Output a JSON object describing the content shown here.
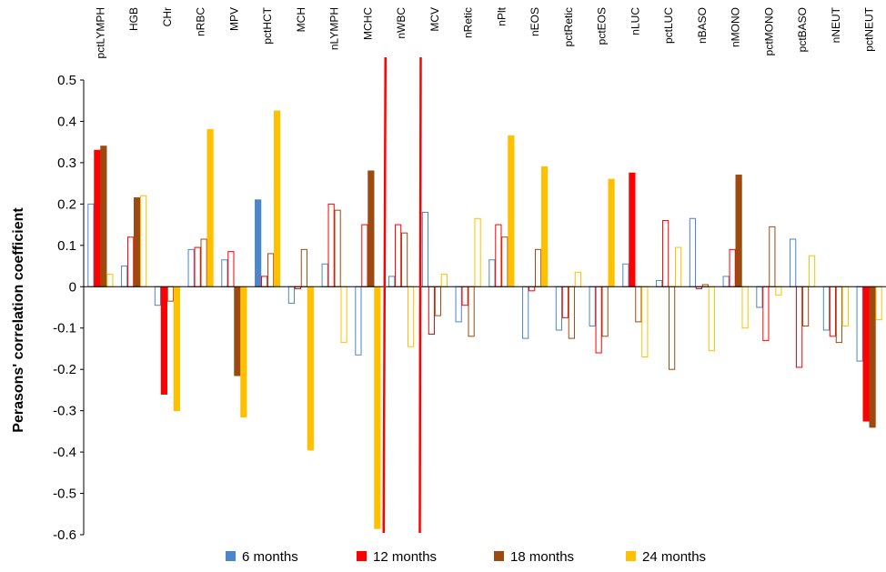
{
  "chart_data": {
    "type": "bar",
    "ylabel": "Perasons' correlation coefficient",
    "ylim": [
      -0.6,
      0.5
    ],
    "yticks": [
      0.5,
      0.4,
      0.3,
      0.2,
      0.1,
      0,
      -0.1,
      -0.2,
      -0.3,
      -0.4,
      -0.5,
      -0.6
    ],
    "ytick_labels": [
      "0.5",
      "0.4",
      "0.3",
      "0.2",
      "0.1",
      "0",
      "-0.1",
      "-0.2",
      "-0.3",
      "-0.4",
      "-0.5",
      "-0.6"
    ],
    "grid": false,
    "legend_position": "bottom",
    "categories": [
      "pctLYMPH",
      "HGB",
      "CHr",
      "nRBC",
      "MPV",
      "pctHCT",
      "MCH",
      "nLYMPH",
      "MCHC",
      "nWBC",
      "MCV",
      "nRetic",
      "nPlt",
      "nEOS",
      "pctRetic",
      "pctEOS",
      "nLUC",
      "pctLUC",
      "nBASO",
      "nMONO",
      "pctMONO",
      "pctBASO",
      "nNEUT",
      "pctNEUT"
    ],
    "series": [
      {
        "name": "6 months",
        "color": "#4a86c8",
        "values": [
          0.2,
          0.05,
          -0.045,
          0.09,
          0.065,
          0.21,
          -0.04,
          0.055,
          -0.165,
          0.025,
          0.18,
          -0.085,
          0.065,
          -0.125,
          -0.105,
          -0.095,
          0.055,
          0.015,
          0.165,
          0.025,
          -0.05,
          0.115,
          -0.105,
          -0.18
        ],
        "filled": [
          false,
          false,
          false,
          false,
          false,
          true,
          false,
          false,
          false,
          false,
          false,
          false,
          false,
          false,
          false,
          false,
          false,
          false,
          false,
          false,
          false,
          false,
          false,
          false
        ]
      },
      {
        "name": "12 months",
        "color": "#ff0000",
        "values": [
          0.33,
          0.12,
          -0.26,
          0.095,
          0.085,
          0.025,
          -0.005,
          0.2,
          0.15,
          0.15,
          -0.115,
          -0.045,
          0.15,
          -0.01,
          -0.075,
          -0.16,
          0.275,
          0.16,
          -0.005,
          0.09,
          -0.13,
          -0.195,
          -0.12,
          -0.325
        ],
        "filled": [
          true,
          false,
          true,
          false,
          false,
          false,
          false,
          false,
          false,
          false,
          false,
          false,
          false,
          false,
          false,
          false,
          true,
          false,
          false,
          false,
          false,
          false,
          false,
          true
        ]
      },
      {
        "name": "18 months",
        "color": "#9c4a10",
        "values": [
          0.34,
          0.215,
          -0.035,
          0.115,
          -0.215,
          0.08,
          0.09,
          0.185,
          0.28,
          0.13,
          -0.07,
          -0.12,
          0.12,
          0.09,
          -0.125,
          -0.12,
          -0.085,
          -0.2,
          0.005,
          0.27,
          0.145,
          -0.095,
          -0.135,
          -0.34
        ],
        "filled": [
          true,
          true,
          false,
          false,
          true,
          false,
          false,
          false,
          true,
          false,
          false,
          false,
          false,
          false,
          false,
          false,
          false,
          false,
          false,
          true,
          false,
          false,
          false,
          true
        ]
      },
      {
        "name": "24 months",
        "color": "#ffc000",
        "values": [
          0.03,
          0.22,
          -0.3,
          0.38,
          -0.315,
          0.425,
          -0.395,
          -0.135,
          -0.585,
          -0.145,
          0.03,
          0.165,
          0.365,
          0.29,
          0.035,
          0.26,
          -0.17,
          0.095,
          -0.155,
          -0.1,
          -0.02,
          0.075,
          -0.095,
          -0.08
        ],
        "filled": [
          false,
          false,
          true,
          true,
          true,
          true,
          true,
          false,
          true,
          false,
          false,
          false,
          true,
          true,
          false,
          true,
          false,
          false,
          false,
          false,
          false,
          false,
          false,
          false
        ]
      }
    ]
  }
}
